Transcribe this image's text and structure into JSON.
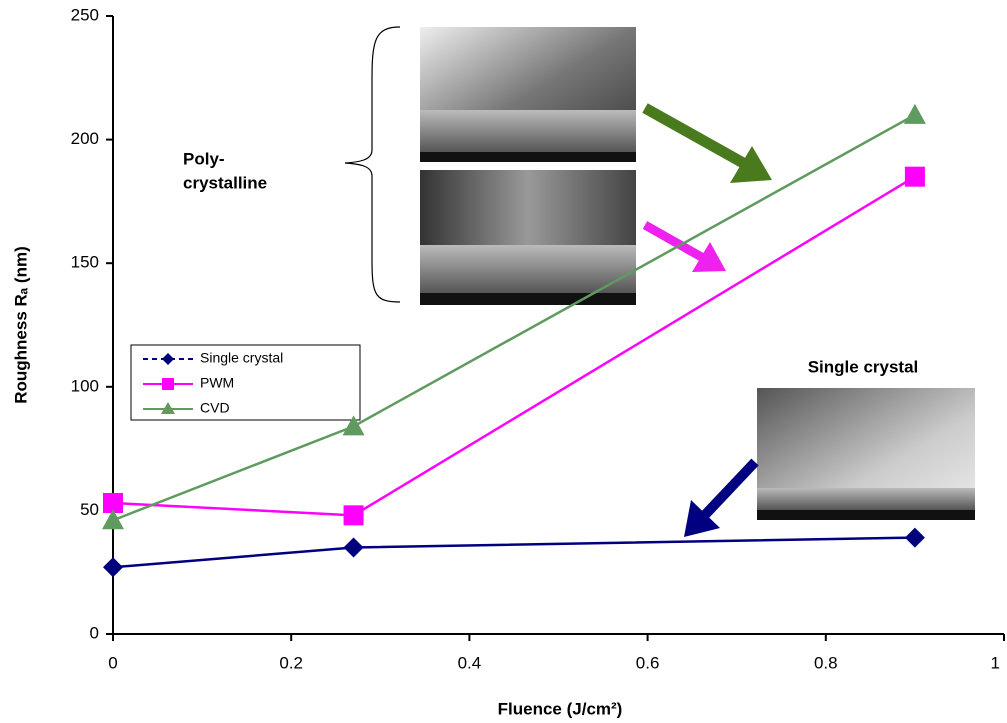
{
  "chart_data": {
    "type": "line",
    "xlabel": "Fluence (J/cm²)",
    "ylabel": "Roughness Rₐ (nm)",
    "x": [
      0,
      0.27,
      0.9
    ],
    "series": [
      {
        "name": "Single crystal",
        "color": "#00007f",
        "marker": "diamond",
        "values": [
          27,
          35,
          39
        ]
      },
      {
        "name": "PWM",
        "color": "#ff00ff",
        "marker": "square",
        "values": [
          53,
          48,
          185
        ]
      },
      {
        "name": "CVD",
        "color": "#5f9a5f",
        "marker": "triangle",
        "values": [
          46,
          84,
          210
        ]
      }
    ],
    "xlim": [
      0,
      1
    ],
    "xticks": [
      0,
      0.2,
      0.4,
      0.6,
      0.8,
      1
    ],
    "ylim": [
      0,
      250
    ],
    "yticks": [
      0,
      50,
      100,
      150,
      200,
      250
    ],
    "grid": false,
    "legend": "left",
    "annotations": [
      "Poly-",
      "crystalline",
      "Single crystal"
    ]
  }
}
